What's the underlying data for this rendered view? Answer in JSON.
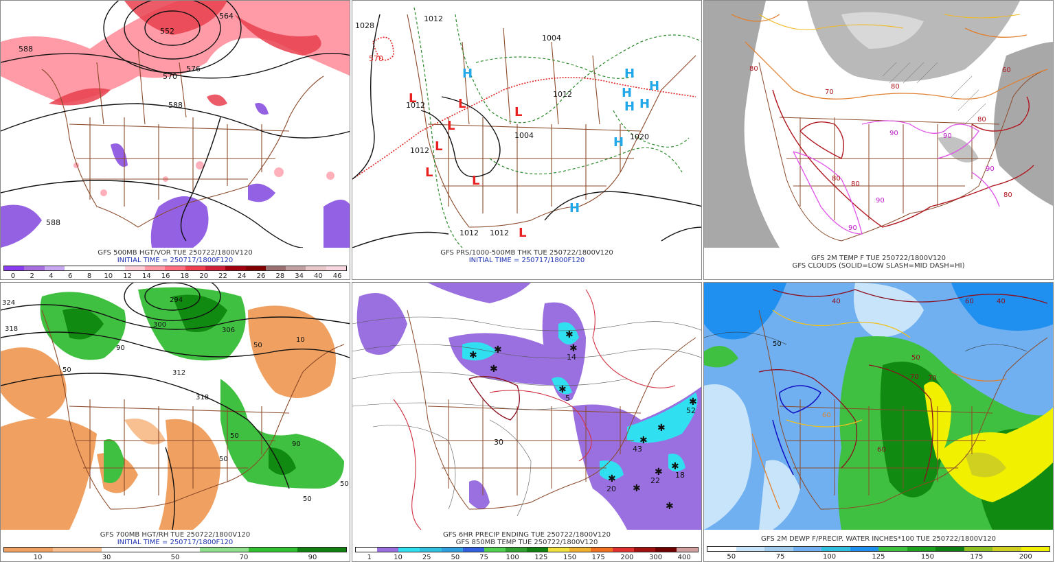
{
  "panels": [
    {
      "line1": "GFS 500MB HGT/VOR TUE 250722/1800V120",
      "line2": "INITIAL TIME = 250717/1800F120",
      "legend_colors": [
        "#8a3cf0",
        "#a86ee0",
        "#c8a8f0",
        "#ffffff",
        "#ffffff",
        "#ffffff",
        "#ffd0d8",
        "#ff9aa6",
        "#ff6f80",
        "#f04050",
        "#d0203a",
        "#a00010",
        "#800000",
        "#9a7070",
        "#c0a0a0",
        "#e8c8c8",
        "#f8d8e0"
      ],
      "legend_ticks": [
        "0",
        "2",
        "4",
        "6",
        "8",
        "10",
        "12",
        "14",
        "16",
        "18",
        "20",
        "22",
        "24",
        "26",
        "28",
        "34",
        "40",
        "46"
      ],
      "contours": [
        "552",
        "564",
        "570",
        "576",
        "588",
        "588",
        "588"
      ]
    },
    {
      "line1": "GFS PRS/1000-500MB THK TUE 250722/1800V120",
      "line2": "INITIAL TIME = 250717/1800F120",
      "contours": [
        "1012",
        "1004",
        "1028",
        "570",
        "1012",
        "1004",
        "1012",
        "1020",
        "1012",
        "1012",
        "1012"
      ],
      "highs": [
        "H",
        "H",
        "H",
        "H",
        "H",
        "H",
        "H",
        "H"
      ],
      "lows": [
        "L",
        "L",
        "L",
        "L",
        "L",
        "L",
        "L"
      ]
    },
    {
      "line1": "GFS 2M TEMP F TUE 250722/1800V120",
      "line2": "GFS CLOUDS (SOLID=LOW SLASH=MID DASH=HI)",
      "contours": [
        "80",
        "60",
        "80",
        "70",
        "90",
        "90",
        "80",
        "80",
        "90",
        "90",
        "80",
        "90",
        "80"
      ]
    },
    {
      "line1": "GFS 700MB HGT/RH TUE 250722/1800V120",
      "line2": "INITIAL TIME = 250717/1800F120",
      "legend_colors": [
        "#f0a060",
        "#f0a060",
        "#f8c090",
        "#f8c090",
        "#ffffff",
        "#ffffff",
        "#ffffff",
        "#ffffff",
        "#90e090",
        "#90e090",
        "#30c030",
        "#30c030",
        "#108010",
        "#108010"
      ],
      "legend_ticks": [
        "10",
        "30",
        "50",
        "70",
        "90"
      ],
      "contours": [
        "324",
        "318",
        "312",
        "306",
        "300",
        "294",
        "318",
        "50",
        "90",
        "10",
        "50",
        "50",
        "90",
        "50",
        "50",
        "50"
      ]
    },
    {
      "line1": "GFS 6HR PRECIP ENDING TUE 250722/1800V120",
      "line2": "GFS 850MB TEMP TUE 250722/1800V120",
      "legend_colors": [
        "#ffffff",
        "#9a70e0",
        "#30e0f0",
        "#30c0e0",
        "#30a0e0",
        "#3060e0",
        "#50d050",
        "#30a030",
        "#108010",
        "#f0e040",
        "#f0b030",
        "#f07020",
        "#e03030",
        "#a01010",
        "#700000",
        "#d0a0a0"
      ],
      "legend_ticks": [
        "1",
        "10",
        "25",
        "50",
        "75",
        "100",
        "125",
        "150",
        "175",
        "200",
        "300",
        "400"
      ],
      "contours": [
        "52",
        "14",
        "43",
        "18",
        "20",
        "22",
        "5",
        "30"
      ]
    },
    {
      "line1": "GFS 2M DEWP F/PRECIP. WATER INCHES*100 TUE 250722/1800V120",
      "line2": "",
      "legend_colors": [
        "#ffffff",
        "#c8e4fa",
        "#a0ccf0",
        "#70b0f0",
        "#30c0e0",
        "#2090f0",
        "#40c040",
        "#20a020",
        "#108010",
        "#90c020",
        "#d0d020",
        "#f0f000"
      ],
      "legend_ticks": [
        "50",
        "75",
        "100",
        "125",
        "150",
        "175",
        "200"
      ],
      "contours": [
        "40",
        "60",
        "50",
        "70",
        "40",
        "60",
        "60",
        "70",
        "50"
      ]
    }
  ]
}
